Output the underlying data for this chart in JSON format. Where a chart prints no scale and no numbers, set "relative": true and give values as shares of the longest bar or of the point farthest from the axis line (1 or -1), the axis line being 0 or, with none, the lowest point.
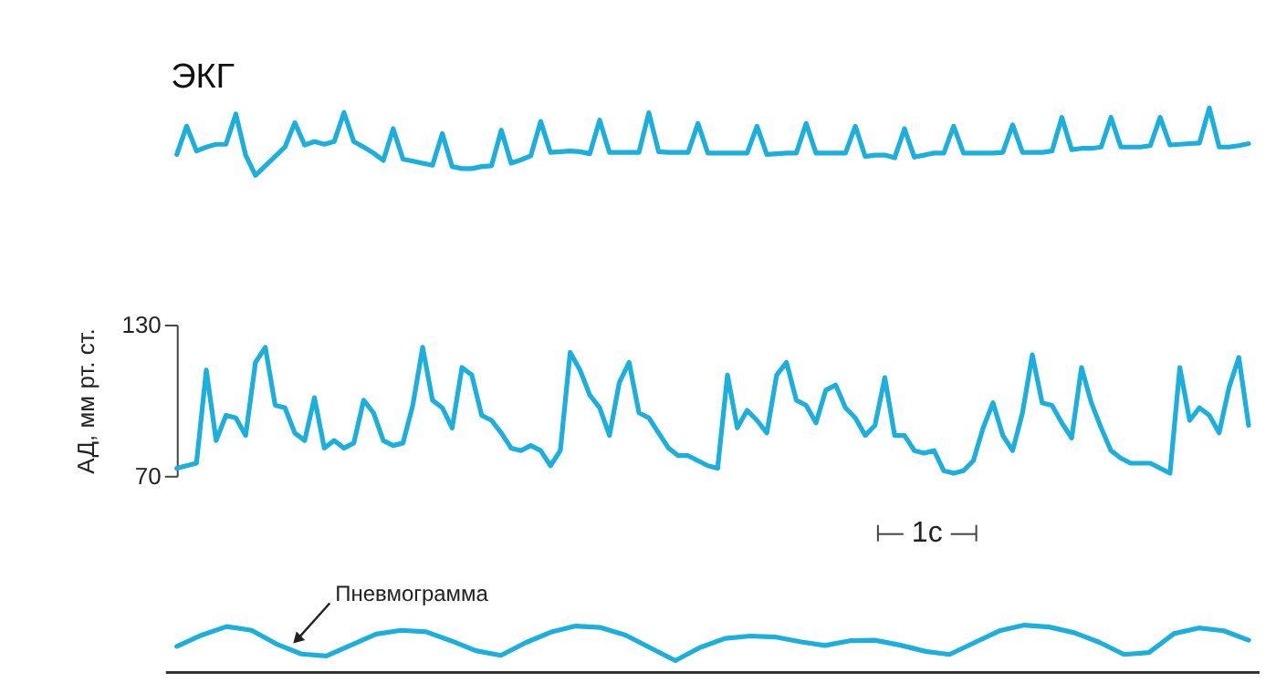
{
  "chart_data": [
    {
      "type": "line",
      "title": "ЭКГ",
      "relative": true,
      "tick_labels": false,
      "marker": "none",
      "line_style": "solid",
      "categories": [
        null,
        null,
        null,
        null,
        null,
        null,
        null,
        null,
        null,
        null,
        null,
        null,
        null,
        null,
        null,
        null,
        null,
        null,
        null,
        null,
        null,
        null,
        null,
        null,
        null,
        null,
        null,
        null,
        null,
        null,
        null,
        null,
        null,
        null,
        null,
        null,
        null,
        null,
        null,
        null,
        null,
        null,
        null,
        null,
        null,
        null,
        null,
        null,
        null,
        null,
        null,
        null,
        null,
        null,
        null,
        null,
        null,
        null,
        null,
        null,
        null,
        null,
        null,
        null,
        null,
        null,
        null,
        null,
        null,
        null,
        null,
        null,
        null,
        null,
        null,
        null,
        null,
        null,
        null,
        null,
        null,
        null,
        null,
        null,
        null,
        null,
        null,
        null,
        null,
        null,
        null,
        null,
        null,
        null,
        null,
        null,
        null,
        null,
        null,
        null,
        null,
        null,
        null,
        null,
        null,
        null,
        null,
        null,
        null,
        null
      ],
      "series": [
        {
          "color": "#1aafdc",
          "values": [
            0.31,
            0.73,
            0.36,
            0.42,
            0.46,
            0.46,
            0.91,
            0.3,
            0.0,
            0.14,
            0.28,
            0.42,
            0.78,
            0.45,
            0.5,
            0.46,
            0.5,
            0.93,
            0.5,
            0.42,
            0.33,
            0.22,
            0.69,
            0.24,
            0.21,
            0.18,
            0.15,
            0.62,
            0.13,
            0.1,
            0.1,
            0.13,
            0.14,
            0.67,
            0.18,
            0.23,
            0.29,
            0.8,
            0.34,
            0.35,
            0.36,
            0.35,
            0.32,
            0.82,
            0.34,
            0.34,
            0.34,
            0.34,
            0.93,
            0.35,
            0.34,
            0.34,
            0.34,
            0.77,
            0.33,
            0.33,
            0.33,
            0.33,
            0.33,
            0.73,
            0.31,
            0.32,
            0.33,
            0.33,
            0.77,
            0.33,
            0.33,
            0.33,
            0.33,
            0.73,
            0.28,
            0.3,
            0.3,
            0.26,
            0.69,
            0.27,
            0.3,
            0.33,
            0.33,
            0.73,
            0.33,
            0.33,
            0.33,
            0.33,
            0.34,
            0.75,
            0.34,
            0.34,
            0.34,
            0.36,
            0.86,
            0.38,
            0.4,
            0.4,
            0.42,
            0.86,
            0.42,
            0.42,
            0.42,
            0.44,
            0.86,
            0.45,
            0.46,
            0.47,
            0.48,
            1,
            0.42,
            0.42,
            0.44,
            0.47
          ]
        }
      ]
    },
    {
      "type": "line",
      "ylabel": "АД, мм рт. ст.",
      "ylim": [
        70,
        130
      ],
      "yticks": [
        70,
        130
      ],
      "tick_labels": "y",
      "marker": "none",
      "line_style": "solid",
      "annotations": [
        "1c"
      ],
      "categories": [
        null,
        null,
        null,
        null,
        null,
        null,
        null,
        null,
        null,
        null,
        null,
        null,
        null,
        null,
        null,
        null,
        null,
        null,
        null,
        null,
        null,
        null,
        null,
        null,
        null,
        null,
        null,
        null,
        null,
        null,
        null,
        null,
        null,
        null,
        null,
        null,
        null,
        null,
        null,
        null,
        null,
        null,
        null,
        null,
        null,
        null,
        null,
        null,
        null,
        null,
        null,
        null,
        null,
        null,
        null,
        null,
        null,
        null,
        null,
        null,
        null,
        null,
        null,
        null,
        null,
        null,
        null,
        null,
        null,
        null,
        null,
        null,
        null,
        null,
        null,
        null,
        null,
        null,
        null,
        null,
        null,
        null,
        null,
        null,
        null,
        null,
        null,
        null,
        null,
        null,
        null,
        null,
        null,
        null,
        null,
        null,
        null,
        null,
        null,
        null,
        null,
        null,
        null,
        null,
        null,
        null,
        null,
        null,
        null,
        null
      ],
      "series": [
        {
          "color": "#1aafdc",
          "values": [
            73,
            74,
            75,
            112,
            84,
            94,
            93,
            86,
            115,
            121,
            98,
            97,
            87,
            84,
            101,
            81,
            84,
            81,
            83,
            100,
            95,
            84,
            82,
            83,
            98,
            121,
            100,
            97,
            89,
            113,
            110,
            94,
            92,
            87,
            81,
            80,
            82,
            80,
            74,
            80,
            119,
            112,
            102,
            97,
            86,
            107,
            115,
            95,
            93,
            87,
            81,
            78,
            78,
            76,
            74,
            73,
            110,
            89,
            96,
            92,
            87,
            110,
            115,
            100,
            98,
            91,
            104,
            106,
            97,
            93,
            86,
            90,
            109,
            86,
            86,
            80,
            79,
            80,
            72,
            71,
            72,
            76,
            89,
            99,
            86,
            80,
            95,
            118,
            99,
            98,
            91,
            85,
            113,
            99,
            89,
            80,
            77,
            75,
            75,
            75,
            73,
            71,
            113,
            92,
            97,
            94,
            87,
            105,
            117,
            90
          ]
        }
      ]
    },
    {
      "type": "line",
      "relative": true,
      "tick_labels": false,
      "marker": "none",
      "line_style": "solid",
      "ref_lines": [
        {
          "axis": "y",
          "value": 0,
          "color": "#333333"
        }
      ],
      "annotations": [
        "Пневмограмма"
      ],
      "categories": [
        null,
        null,
        null,
        null,
        null,
        null,
        null,
        null,
        null,
        null,
        null,
        null,
        null,
        null,
        null,
        null,
        null,
        null,
        null,
        null,
        null,
        null,
        null,
        null,
        null,
        null,
        null,
        null,
        null,
        null,
        null,
        null,
        null,
        null,
        null,
        null,
        null,
        null,
        null,
        null,
        null,
        null,
        null,
        null
      ],
      "series": [
        {
          "color": "#1aafdc",
          "values": [
            0.55,
            0.79,
            0.97,
            0.89,
            0.6,
            0.39,
            0.35,
            0.58,
            0.81,
            0.89,
            0.86,
            0.67,
            0.46,
            0.36,
            0.63,
            0.85,
            0.98,
            0.95,
            0.79,
            0.52,
            0.25,
            0.53,
            0.72,
            0.77,
            0.75,
            0.65,
            0.57,
            0.67,
            0.68,
            0.58,
            0.45,
            0.38,
            0.63,
            0.88,
            1.0,
            0.96,
            0.84,
            0.64,
            0.38,
            0.42,
            0.82,
            0.94,
            0.88,
            0.68
          ]
        }
      ]
    }
  ]
}
